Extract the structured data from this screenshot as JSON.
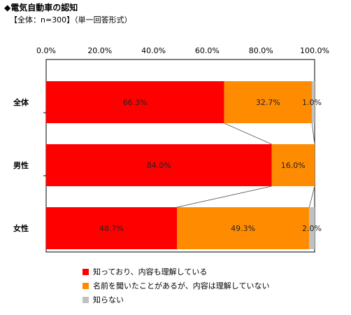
{
  "header": {
    "title": "◆電気自動車の認知",
    "subtitle": "【全体：n=300】（単一回答形式）"
  },
  "chart_data": {
    "type": "bar",
    "orientation": "horizontal",
    "stacked": "percent",
    "categories": [
      "全体",
      "男性",
      "女性"
    ],
    "x_ticks": [
      "0.0%",
      "20.0%",
      "40.0%",
      "60.0%",
      "80.0%",
      "100.0%"
    ],
    "xlim": [
      0,
      100
    ],
    "grid": false,
    "legend_position": "bottom",
    "series": [
      {
        "name": "知っており、内容も理解している",
        "values": [
          66.3,
          84.0,
          48.7
        ],
        "labels": [
          "66.3%",
          "84.0%",
          "48.7%"
        ],
        "color": "#ff0000"
      },
      {
        "name": "名前を聞いたことがあるが、内容は理解していない",
        "values": [
          32.7,
          16.0,
          49.3
        ],
        "labels": [
          "32.7%",
          "16.0%",
          "49.3%"
        ],
        "color": "#ff8c00"
      },
      {
        "name": "知らない",
        "values": [
          1.0,
          0.0,
          2.0
        ],
        "labels": [
          "1.0%",
          "",
          "2.0%"
        ],
        "color": "#c0c0c0"
      }
    ]
  }
}
